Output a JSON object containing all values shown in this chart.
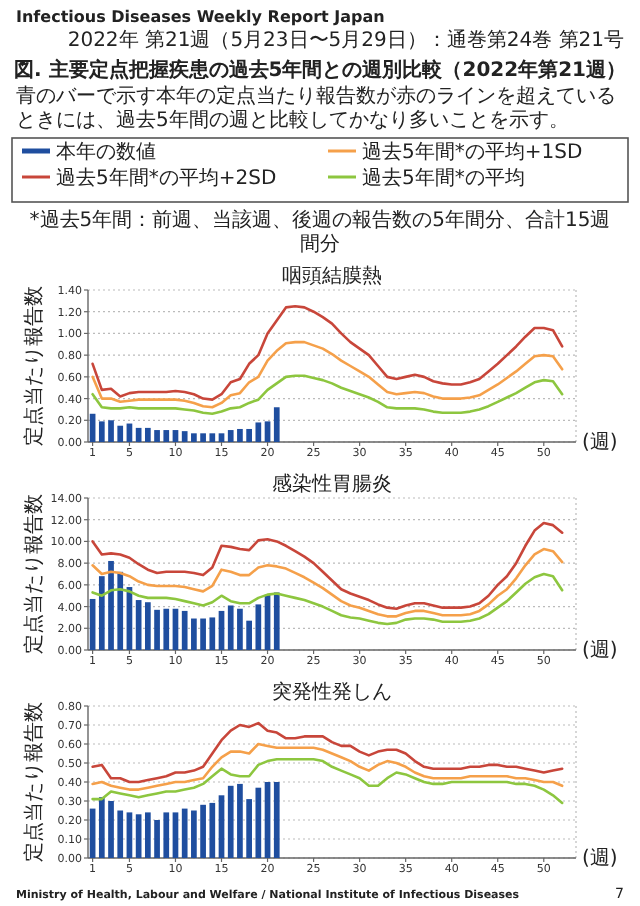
{
  "chart_data": [
    {
      "type": "other",
      "title": "図. 主要定点把握疾患の過去5年間との週別比較（2022年第21週）",
      "subtitle": "青のバーで示す本年の定点当たり報告数が赤のラインを超えているときには、過去5年間の週と比較してかなり多いことを示す。",
      "annotations": [
        "Infectious Diseases Weekly Report Japan",
        "2022年 第21週（5月23日〜5月29日）：通巻第24巻 第21号",
        "*過去5年間：前週、当該週、後週の報告数の5年間分、合計15週間分"
      ]
    },
    {
      "type": "bar",
      "title": "咽頭結膜熱",
      "ylabel": "定点当たり報告数",
      "xlabel": "(週)",
      "legend": "top",
      "grid": "y",
      "xlim": [
        0.5,
        53.5
      ],
      "xticks": [
        1,
        5,
        10,
        15,
        20,
        25,
        30,
        35,
        40,
        45,
        50
      ],
      "ylim": [
        0,
        1.4
      ],
      "yticks": [
        {
          "value": 0,
          "label": "0.00"
        },
        {
          "value": 0.2,
          "label": "0.20"
        },
        {
          "value": 0.4,
          "label": "0.40"
        },
        {
          "value": 0.6,
          "label": "0.60"
        },
        {
          "value": 0.8,
          "label": "0.80"
        },
        {
          "value": 1.0,
          "label": "1.00"
        },
        {
          "value": 1.2,
          "label": "1.20"
        },
        {
          "value": 1.4,
          "label": "1.40"
        }
      ],
      "series": [
        {
          "name": "本年の数値",
          "type": "bar",
          "color": "#1f4e9f",
          "x": [
            1,
            2,
            3,
            4,
            5,
            6,
            7,
            8,
            9,
            10,
            11,
            12,
            13,
            14,
            15,
            16,
            17,
            18,
            19,
            20,
            21
          ],
          "values": [
            0.26,
            0.19,
            0.2,
            0.15,
            0.17,
            0.13,
            0.13,
            0.11,
            0.11,
            0.11,
            0.1,
            0.08,
            0.08,
            0.08,
            0.08,
            0.11,
            0.12,
            0.12,
            0.18,
            0.19,
            0.32
          ]
        },
        {
          "name": "過去5年間*の平均+2SD",
          "type": "line",
          "color": "#c8463a",
          "x": [
            1,
            2,
            3,
            4,
            5,
            6,
            7,
            8,
            9,
            10,
            11,
            12,
            13,
            14,
            15,
            16,
            17,
            18,
            19,
            20,
            21,
            22,
            23,
            24,
            25,
            26,
            27,
            28,
            29,
            30,
            31,
            32,
            33,
            34,
            35,
            36,
            37,
            38,
            39,
            40,
            41,
            42,
            43,
            44,
            45,
            46,
            47,
            48,
            49,
            50,
            51,
            52
          ],
          "values": [
            0.72,
            0.48,
            0.49,
            0.42,
            0.45,
            0.46,
            0.46,
            0.46,
            0.46,
            0.47,
            0.46,
            0.44,
            0.4,
            0.39,
            0.44,
            0.55,
            0.58,
            0.72,
            0.8,
            1.0,
            1.12,
            1.24,
            1.25,
            1.24,
            1.2,
            1.15,
            1.09,
            1.0,
            0.92,
            0.86,
            0.8,
            0.7,
            0.6,
            0.58,
            0.6,
            0.62,
            0.6,
            0.56,
            0.54,
            0.53,
            0.53,
            0.55,
            0.58,
            0.65,
            0.72,
            0.8,
            0.88,
            0.97,
            1.05,
            1.05,
            1.03,
            0.88
          ]
        },
        {
          "name": "過去5年間*の平均+1SD",
          "type": "line",
          "color": "#f5a04a",
          "x": [
            1,
            2,
            3,
            4,
            5,
            6,
            7,
            8,
            9,
            10,
            11,
            12,
            13,
            14,
            15,
            16,
            17,
            18,
            19,
            20,
            21,
            22,
            23,
            24,
            25,
            26,
            27,
            28,
            29,
            30,
            31,
            32,
            33,
            34,
            35,
            36,
            37,
            38,
            39,
            40,
            41,
            42,
            43,
            44,
            45,
            46,
            47,
            48,
            49,
            50,
            51,
            52
          ],
          "values": [
            0.6,
            0.4,
            0.4,
            0.37,
            0.38,
            0.39,
            0.39,
            0.39,
            0.39,
            0.39,
            0.38,
            0.36,
            0.33,
            0.32,
            0.36,
            0.43,
            0.45,
            0.55,
            0.6,
            0.75,
            0.84,
            0.91,
            0.92,
            0.92,
            0.89,
            0.86,
            0.81,
            0.75,
            0.7,
            0.65,
            0.6,
            0.53,
            0.46,
            0.44,
            0.45,
            0.46,
            0.45,
            0.42,
            0.4,
            0.4,
            0.4,
            0.41,
            0.43,
            0.48,
            0.53,
            0.59,
            0.65,
            0.72,
            0.79,
            0.8,
            0.79,
            0.67
          ]
        },
        {
          "name": "過去5年間*の平均",
          "type": "line",
          "color": "#8dc63f",
          "x": [
            1,
            2,
            3,
            4,
            5,
            6,
            7,
            8,
            9,
            10,
            11,
            12,
            13,
            14,
            15,
            16,
            17,
            18,
            19,
            20,
            21,
            22,
            23,
            24,
            25,
            26,
            27,
            28,
            29,
            30,
            31,
            32,
            33,
            34,
            35,
            36,
            37,
            38,
            39,
            40,
            41,
            42,
            43,
            44,
            45,
            46,
            47,
            48,
            49,
            50,
            51,
            52
          ],
          "values": [
            0.44,
            0.32,
            0.31,
            0.31,
            0.32,
            0.31,
            0.31,
            0.31,
            0.31,
            0.31,
            0.3,
            0.29,
            0.27,
            0.26,
            0.28,
            0.31,
            0.32,
            0.36,
            0.39,
            0.48,
            0.54,
            0.6,
            0.61,
            0.61,
            0.59,
            0.57,
            0.54,
            0.5,
            0.47,
            0.44,
            0.41,
            0.37,
            0.32,
            0.31,
            0.31,
            0.31,
            0.3,
            0.28,
            0.27,
            0.27,
            0.27,
            0.28,
            0.3,
            0.33,
            0.37,
            0.41,
            0.45,
            0.5,
            0.55,
            0.57,
            0.56,
            0.44
          ]
        }
      ]
    },
    {
      "type": "bar",
      "title": "感染性胃腸炎",
      "ylabel": "定点当たり報告数",
      "xlabel": "(週)",
      "grid": "y",
      "xlim": [
        0.5,
        53.5
      ],
      "xticks": [
        1,
        5,
        10,
        15,
        20,
        25,
        30,
        35,
        40,
        45,
        50
      ],
      "ylim": [
        0,
        14
      ],
      "yticks": [
        {
          "value": 0,
          "label": "0.00"
        },
        {
          "value": 2,
          "label": "2.00"
        },
        {
          "value": 4,
          "label": "4.00"
        },
        {
          "value": 6,
          "label": "6.00"
        },
        {
          "value": 8,
          "label": "8.00"
        },
        {
          "value": 10,
          "label": "10.00"
        },
        {
          "value": 12,
          "label": "12.00"
        },
        {
          "value": 14,
          "label": "14.00"
        }
      ],
      "series": [
        {
          "type": "bar",
          "color": "#1f4e9f",
          "x": [
            1,
            2,
            3,
            4,
            5,
            6,
            7,
            8,
            9,
            10,
            11,
            12,
            13,
            14,
            15,
            16,
            17,
            18,
            19,
            20,
            21
          ],
          "values": [
            4.7,
            6.8,
            8.2,
            7.2,
            5.8,
            4.6,
            4.4,
            3.7,
            3.8,
            3.8,
            3.6,
            2.9,
            2.9,
            3.0,
            3.6,
            4.1,
            3.8,
            2.7,
            4.2,
            5.1,
            5.3
          ]
        },
        {
          "type": "line",
          "color": "#c8463a",
          "x": [
            1,
            2,
            3,
            4,
            5,
            6,
            7,
            8,
            9,
            10,
            11,
            12,
            13,
            14,
            15,
            16,
            17,
            18,
            19,
            20,
            21,
            22,
            23,
            24,
            25,
            26,
            27,
            28,
            29,
            30,
            31,
            32,
            33,
            34,
            35,
            36,
            37,
            38,
            39,
            40,
            41,
            42,
            43,
            44,
            45,
            46,
            47,
            48,
            49,
            50,
            51,
            52
          ],
          "values": [
            10.0,
            8.8,
            8.9,
            8.8,
            8.5,
            7.9,
            7.4,
            7.1,
            7.2,
            7.2,
            7.2,
            7.1,
            6.9,
            7.6,
            9.6,
            9.5,
            9.3,
            9.2,
            10.1,
            10.2,
            10.0,
            9.6,
            9.1,
            8.6,
            8.0,
            7.2,
            6.4,
            5.6,
            5.2,
            4.9,
            4.6,
            4.2,
            3.9,
            3.8,
            4.1,
            4.3,
            4.3,
            4.1,
            3.9,
            3.9,
            3.9,
            4.0,
            4.3,
            5.0,
            6.0,
            6.8,
            8.0,
            9.6,
            11.0,
            11.7,
            11.5,
            10.8
          ]
        },
        {
          "type": "line",
          "color": "#f5a04a",
          "x": [
            1,
            2,
            3,
            4,
            5,
            6,
            7,
            8,
            9,
            10,
            11,
            12,
            13,
            14,
            15,
            16,
            17,
            18,
            19,
            20,
            21,
            22,
            23,
            24,
            25,
            26,
            27,
            28,
            29,
            30,
            31,
            32,
            33,
            34,
            35,
            36,
            37,
            38,
            39,
            40,
            41,
            42,
            43,
            44,
            45,
            46,
            47,
            48,
            49,
            50,
            51,
            52
          ],
          "values": [
            7.8,
            7.0,
            7.2,
            7.1,
            6.8,
            6.3,
            6.0,
            5.9,
            5.9,
            5.9,
            5.8,
            5.6,
            5.4,
            5.9,
            7.4,
            7.2,
            6.9,
            6.9,
            7.6,
            7.8,
            7.7,
            7.5,
            7.1,
            6.7,
            6.2,
            5.7,
            5.1,
            4.5,
            4.1,
            3.9,
            3.6,
            3.3,
            3.1,
            3.1,
            3.4,
            3.6,
            3.6,
            3.4,
            3.2,
            3.2,
            3.2,
            3.3,
            3.6,
            4.2,
            5.0,
            5.6,
            6.6,
            7.8,
            8.8,
            9.3,
            9.1,
            8.1
          ]
        },
        {
          "type": "line",
          "color": "#8dc63f",
          "x": [
            1,
            2,
            3,
            4,
            5,
            6,
            7,
            8,
            9,
            10,
            11,
            12,
            13,
            14,
            15,
            16,
            17,
            18,
            19,
            20,
            21,
            22,
            23,
            24,
            25,
            26,
            27,
            28,
            29,
            30,
            31,
            32,
            33,
            34,
            35,
            36,
            37,
            38,
            39,
            40,
            41,
            42,
            43,
            44,
            45,
            46,
            47,
            48,
            49,
            50,
            51,
            52
          ],
          "values": [
            5.3,
            5.0,
            5.5,
            5.6,
            5.4,
            5.0,
            4.8,
            4.8,
            4.8,
            4.7,
            4.5,
            4.3,
            4.1,
            4.4,
            5.0,
            4.5,
            4.3,
            4.3,
            4.8,
            5.1,
            5.2,
            5.0,
            4.8,
            4.6,
            4.3,
            4.0,
            3.6,
            3.2,
            3.0,
            2.9,
            2.7,
            2.5,
            2.4,
            2.5,
            2.8,
            2.9,
            2.9,
            2.8,
            2.6,
            2.6,
            2.6,
            2.7,
            2.9,
            3.3,
            3.9,
            4.5,
            5.3,
            6.1,
            6.7,
            7.0,
            6.8,
            5.5
          ]
        }
      ]
    },
    {
      "type": "bar",
      "title": "突発性発しん",
      "ylabel": "定点当たり報告数",
      "grid": "y",
      "annotations": [
        "Ministry of Health, Labour and Welfare / National Institute of Infectious Diseases",
        "7"
      ],
      "xlabel": "(週)",
      "xlim": [
        0.5,
        53.5
      ],
      "xticks": [
        1,
        5,
        10,
        15,
        20,
        25,
        30,
        35,
        40,
        45,
        50
      ],
      "ylim": [
        0,
        0.8
      ],
      "yticks": [
        {
          "value": 0,
          "label": "0.00"
        },
        {
          "value": 0.1,
          "label": "0.10"
        },
        {
          "value": 0.2,
          "label": "0.20"
        },
        {
          "value": 0.3,
          "label": "0.30"
        },
        {
          "value": 0.4,
          "label": "0.40"
        },
        {
          "value": 0.5,
          "label": "0.50"
        },
        {
          "value": 0.6,
          "label": "0.60"
        },
        {
          "value": 0.7,
          "label": "0.70"
        },
        {
          "value": 0.8,
          "label": "0.80"
        }
      ],
      "series": [
        {
          "type": "bar",
          "color": "#1f4e9f",
          "x": [
            1,
            2,
            3,
            4,
            5,
            6,
            7,
            8,
            9,
            10,
            11,
            12,
            13,
            14,
            15,
            16,
            17,
            18,
            19,
            20,
            21
          ],
          "values": [
            0.26,
            0.32,
            0.3,
            0.25,
            0.24,
            0.23,
            0.24,
            0.2,
            0.24,
            0.24,
            0.26,
            0.25,
            0.28,
            0.29,
            0.33,
            0.38,
            0.39,
            0.31,
            0.37,
            0.4,
            0.4
          ]
        },
        {
          "type": "line",
          "color": "#c8463a",
          "x": [
            1,
            2,
            3,
            4,
            5,
            6,
            7,
            8,
            9,
            10,
            11,
            12,
            13,
            14,
            15,
            16,
            17,
            18,
            19,
            20,
            21,
            22,
            23,
            24,
            25,
            26,
            27,
            28,
            29,
            30,
            31,
            32,
            33,
            34,
            35,
            36,
            37,
            38,
            39,
            40,
            41,
            42,
            43,
            44,
            45,
            46,
            47,
            48,
            49,
            50,
            51,
            52
          ],
          "values": [
            0.48,
            0.49,
            0.42,
            0.42,
            0.4,
            0.4,
            0.41,
            0.42,
            0.43,
            0.45,
            0.45,
            0.46,
            0.48,
            0.55,
            0.62,
            0.67,
            0.7,
            0.69,
            0.71,
            0.67,
            0.66,
            0.63,
            0.63,
            0.64,
            0.64,
            0.64,
            0.61,
            0.59,
            0.59,
            0.56,
            0.54,
            0.56,
            0.57,
            0.57,
            0.55,
            0.51,
            0.48,
            0.47,
            0.47,
            0.47,
            0.47,
            0.48,
            0.48,
            0.49,
            0.49,
            0.48,
            0.48,
            0.47,
            0.46,
            0.45,
            0.46,
            0.47
          ]
        },
        {
          "type": "line",
          "color": "#f5a04a",
          "x": [
            1,
            2,
            3,
            4,
            5,
            6,
            7,
            8,
            9,
            10,
            11,
            12,
            13,
            14,
            15,
            16,
            17,
            18,
            19,
            20,
            21,
            22,
            23,
            24,
            25,
            26,
            27,
            28,
            29,
            30,
            31,
            32,
            33,
            34,
            35,
            36,
            37,
            38,
            39,
            40,
            41,
            42,
            43,
            44,
            45,
            46,
            47,
            48,
            49,
            50,
            51,
            52
          ],
          "values": [
            0.39,
            0.4,
            0.38,
            0.37,
            0.36,
            0.36,
            0.37,
            0.38,
            0.39,
            0.4,
            0.4,
            0.41,
            0.42,
            0.48,
            0.53,
            0.56,
            0.56,
            0.55,
            0.6,
            0.59,
            0.58,
            0.58,
            0.58,
            0.58,
            0.58,
            0.57,
            0.55,
            0.53,
            0.51,
            0.48,
            0.46,
            0.49,
            0.51,
            0.5,
            0.48,
            0.45,
            0.43,
            0.42,
            0.42,
            0.42,
            0.42,
            0.43,
            0.43,
            0.43,
            0.43,
            0.43,
            0.42,
            0.42,
            0.41,
            0.4,
            0.4,
            0.38
          ]
        },
        {
          "type": "line",
          "color": "#8dc63f",
          "x": [
            1,
            2,
            3,
            4,
            5,
            6,
            7,
            8,
            9,
            10,
            11,
            12,
            13,
            14,
            15,
            16,
            17,
            18,
            19,
            20,
            21,
            22,
            23,
            24,
            25,
            26,
            27,
            28,
            29,
            30,
            31,
            32,
            33,
            34,
            35,
            36,
            37,
            38,
            39,
            40,
            41,
            42,
            43,
            44,
            45,
            46,
            47,
            48,
            49,
            50,
            51,
            52
          ],
          "values": [
            0.31,
            0.31,
            0.35,
            0.34,
            0.33,
            0.32,
            0.33,
            0.34,
            0.35,
            0.35,
            0.36,
            0.37,
            0.39,
            0.43,
            0.47,
            0.44,
            0.43,
            0.43,
            0.49,
            0.51,
            0.52,
            0.52,
            0.52,
            0.52,
            0.52,
            0.51,
            0.48,
            0.46,
            0.44,
            0.42,
            0.38,
            0.38,
            0.42,
            0.45,
            0.44,
            0.42,
            0.4,
            0.39,
            0.39,
            0.4,
            0.4,
            0.4,
            0.4,
            0.4,
            0.4,
            0.4,
            0.39,
            0.39,
            0.38,
            0.36,
            0.33,
            0.29
          ]
        }
      ]
    }
  ]
}
